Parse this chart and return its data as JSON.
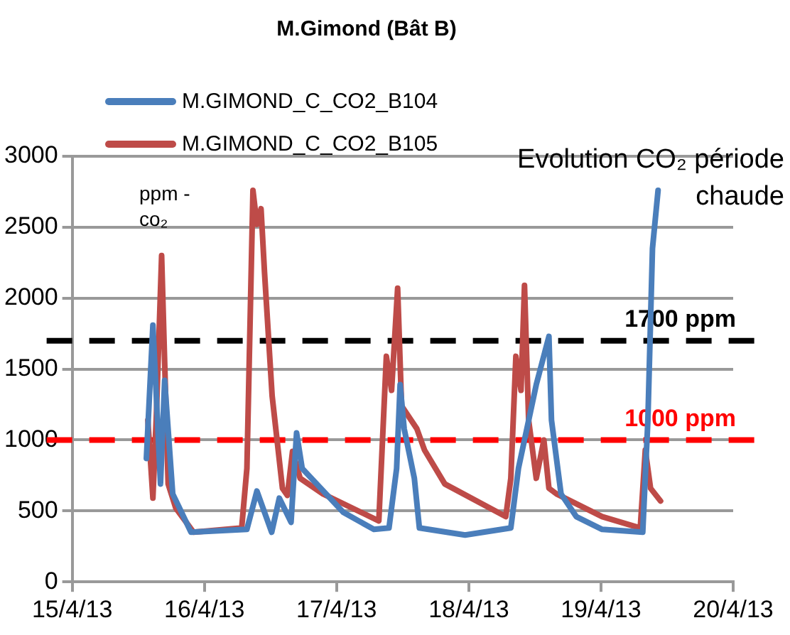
{
  "chart_data": {
    "type": "line",
    "title": "M.Gimond (Bât B)",
    "ylabel": "ppm - co₂",
    "annotations": [
      "Evolution CO₂ période chaude"
    ],
    "xlim": [
      "--04-15",
      "--04-20"
    ],
    "xticks": [
      {
        "value": "--04-15",
        "label": "15/4/13"
      },
      {
        "value": "--04-16",
        "label": "16/4/13"
      },
      {
        "value": "--04-17",
        "label": "17/4/13"
      },
      {
        "value": "--04-18",
        "label": "18/4/13"
      },
      {
        "value": "--04-19",
        "label": "19/4/13"
      },
      {
        "value": "--04-20",
        "label": "20/4/13"
      }
    ],
    "ylim": [
      0,
      3000
    ],
    "yticks": [
      0,
      500,
      1000,
      1500,
      2000,
      2500,
      3000
    ],
    "grid": "y",
    "legend": "top left",
    "marker": "none",
    "line_style": "solid",
    "series": [
      {
        "name": "M.GIMOND_C_CO2_B104",
        "color": "#4a7ebb",
        "x": [
          "--04-15T13:28",
          "--04-15T14:39",
          "--04-15T16:02",
          "--04-15T16:47",
          "--04-15T18:15",
          "--04-15T21:34",
          "--04-16T07:43",
          "--04-16T09:32",
          "--04-16T12:13",
          "--04-16T13:36",
          "--04-16T15:44",
          "--04-16T16:44",
          "--04-16T17:45",
          "--04-17T01:13",
          "--04-17T06:46",
          "--04-17T09:31",
          "--04-17T10:54",
          "--04-17T11:32",
          "--04-17T12:16",
          "--04-17T14:07",
          "--04-17T15:02",
          "--04-17T23:20",
          "--04-18T07:38",
          "--04-18T09:01",
          "--04-18T12:15",
          "--04-18T14:33",
          "--04-18T15:01",
          "--04-18T16:45",
          "--04-18T19:31",
          "--04-19T00:13",
          "--04-19T07:35",
          "--04-19T08:31",
          "--04-19T09:21",
          "--04-19T10:22"
        ],
        "values": [
          870,
          1810,
          690,
          1420,
          620,
          350,
          370,
          640,
          350,
          590,
          420,
          1050,
          800,
          490,
          370,
          380,
          800,
          1390,
          1080,
          730,
          380,
          330,
          380,
          800,
          1390,
          1730,
          1140,
          620,
          460,
          370,
          350,
          1140,
          2350,
          2760
        ]
      },
      {
        "name": "M.GIMOND_C_CO2_B105",
        "color": "#be4b48",
        "x": [
          "--04-15T13:44",
          "--04-15T14:39",
          "--04-15T15:17",
          "--04-15T16:14",
          "--04-15T17:25",
          "--04-15T18:48",
          "--04-15T22:02",
          "--04-16T06:46",
          "--04-16T07:43",
          "--04-16T08:49",
          "--04-16T09:32",
          "--04-16T10:17",
          "--04-16T10:55",
          "--04-16T12:18",
          "--04-16T14:10",
          "--04-16T15:04",
          "--04-16T16:00",
          "--04-16T17:23",
          "--04-16T21:32",
          "--04-17T07:40",
          "--04-17T09:02",
          "--04-17T09:59",
          "--04-17T11:05",
          "--04-17T11:48",
          "--04-17T14:34",
          "--04-17T15:57",
          "--04-17T19:39",
          "--04-18T06:43",
          "--04-18T07:38",
          "--04-18T08:33",
          "--04-18T09:29",
          "--04-18T10:07",
          "--04-18T10:52",
          "--04-18T12:15",
          "--04-18T13:38",
          "--04-18T14:33",
          "--04-18T15:56",
          "--04-19T00:13",
          "--04-19T07:08",
          "--04-19T08:03",
          "--04-19T09:00",
          "--04-19T10:49"
        ],
        "values": [
          1140,
          590,
          1180,
          2300,
          690,
          520,
          350,
          380,
          800,
          2760,
          2520,
          2630,
          2180,
          1310,
          660,
          610,
          920,
          730,
          620,
          430,
          1590,
          1350,
          2070,
          1240,
          1080,
          930,
          690,
          460,
          730,
          1590,
          1350,
          2090,
          1140,
          730,
          1000,
          660,
          620,
          460,
          380,
          930,
          660,
          570
        ]
      }
    ],
    "ref_lines": [
      {
        "axis": "y",
        "value": 1700,
        "label": "1700 ppm",
        "color": "#000000",
        "line_style": "dashed"
      },
      {
        "axis": "y",
        "value": 1000,
        "label": "1000 ppm",
        "color": "#ff0000",
        "line_style": "dashed"
      }
    ]
  }
}
